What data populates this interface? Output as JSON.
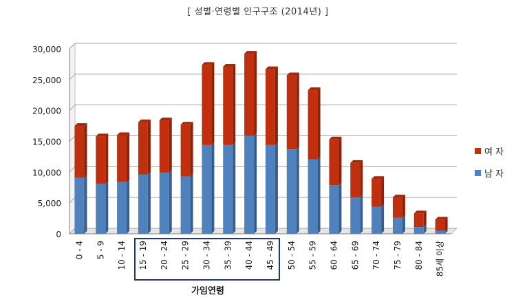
{
  "chart_data": {
    "type": "bar",
    "stacked": true,
    "title": "[ 성별·연령별 인구구조 (2014년) ]",
    "xlabel": "가임연령",
    "ylabel": "",
    "ylim": [
      0,
      30000
    ],
    "yticks": [
      "0",
      "5,000",
      "10,000",
      "15,000",
      "20,000",
      "25,000",
      "30,000"
    ],
    "categories": [
      "0 - 4",
      "5 - 9",
      "10 - 14",
      "15 - 19",
      "20 - 24",
      "25 - 29",
      "30 - 34",
      "35 - 39",
      "40 - 44",
      "45 - 49",
      "50 - 54",
      "55 - 59",
      "60 - 64",
      "65 - 69",
      "70 - 74",
      "75 - 79",
      "80 - 84",
      "85세 이상"
    ],
    "highlighted_categories": [
      "15 - 19",
      "20 - 24",
      "25 - 29",
      "30 - 34",
      "35 - 39",
      "40 - 44",
      "45 - 49"
    ],
    "series": [
      {
        "name": "남 자",
        "color": "#4f81bd",
        "values": [
          9100,
          8100,
          8400,
          9600,
          9900,
          9300,
          14400,
          14400,
          15900,
          14400,
          13700,
          12100,
          7900,
          5900,
          4400,
          2600,
          1100,
          500
        ]
      },
      {
        "name": "여 자",
        "color": "#c0300f",
        "values": [
          8400,
          7700,
          7600,
          8500,
          8500,
          8400,
          13000,
          12700,
          13300,
          12300,
          12000,
          11200,
          7400,
          5600,
          4500,
          3300,
          2200,
          1800
        ]
      }
    ],
    "grid": true,
    "legend_position": "right"
  }
}
